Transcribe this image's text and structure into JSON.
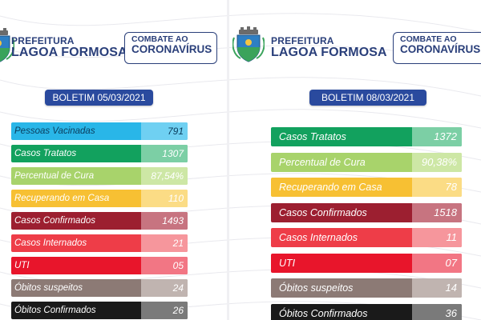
{
  "colors": {
    "brand_blue": "#2a3f7a",
    "boletim_blue": "#2a4a9e",
    "bg": "#ffffff"
  },
  "left": {
    "brand": {
      "line1": "PREFEITURA",
      "line2": "LAGOA FORMOSA"
    },
    "combat": {
      "line1": "COMBATE AO",
      "line2": "CORONAVÍRUS"
    },
    "crest_icon": "municipal-crest-icon",
    "boletim": "BOLETIM 05/03/2021",
    "rows": [
      {
        "label": "Pessoas Vacinadas",
        "value": "791",
        "color": "#29b6e8",
        "value_bg": "#6fd0f2",
        "text": "#0a3c5c"
      },
      {
        "label": "Casos Tratatos",
        "value": "1307",
        "color": "#12a15e",
        "value_bg": "#7ccfa5",
        "text": "#ffffff"
      },
      {
        "label": "Percentual de Cura",
        "value": "87,54%",
        "color": "#a8d36b",
        "value_bg": "#cde7a5",
        "text": "#ffffff"
      },
      {
        "label": "Recuperando em Casa",
        "value": "110",
        "color": "#f7c033",
        "value_bg": "#fbdc85",
        "text": "#ffffff"
      },
      {
        "label": "Casos Confirmados",
        "value": "1493",
        "color": "#9c1f30",
        "value_bg": "#c77480",
        "text": "#ffffff"
      },
      {
        "label": "Casos Internados",
        "value": "21",
        "color": "#ee3d48",
        "value_bg": "#f6969c",
        "text": "#ffffff"
      },
      {
        "label": "UTI",
        "value": "05",
        "color": "#e8152b",
        "value_bg": "#f27684",
        "text": "#ffffff"
      },
      {
        "label": "Óbitos suspeitos",
        "value": "24",
        "color": "#8c7a75",
        "value_bg": "#c0b4b0",
        "text": "#ffffff"
      },
      {
        "label": "Óbitos Confirmados",
        "value": "26",
        "color": "#1a1a1a",
        "value_bg": "#7a7a7a",
        "text": "#ffffff"
      }
    ]
  },
  "right": {
    "brand": {
      "line1": "PREFEITURA",
      "line2": "LAGOA FORMOSA"
    },
    "combat": {
      "line1": "COMBATE AO",
      "line2": "CORONAVÍRUS"
    },
    "crest_icon": "municipal-crest-icon",
    "boletim": "BOLETIM 08/03/2021",
    "rows": [
      {
        "label": "Casos Tratatos",
        "value": "1372",
        "color": "#12a15e",
        "value_bg": "#7ccfa5",
        "text": "#ffffff"
      },
      {
        "label": "Percentual de Cura",
        "value": "90,38%",
        "color": "#a8d36b",
        "value_bg": "#cde7a5",
        "text": "#ffffff"
      },
      {
        "label": "Recuperando em Casa",
        "value": "78",
        "color": "#f7c033",
        "value_bg": "#fbdc85",
        "text": "#ffffff"
      },
      {
        "label": "Casos Confirmados",
        "value": "1518",
        "color": "#9c1f30",
        "value_bg": "#c77480",
        "text": "#ffffff"
      },
      {
        "label": "Casos Internados",
        "value": "11",
        "color": "#ee3d48",
        "value_bg": "#f6969c",
        "text": "#ffffff"
      },
      {
        "label": "UTI",
        "value": "07",
        "color": "#e8152b",
        "value_bg": "#f27684",
        "text": "#ffffff"
      },
      {
        "label": "Óbitos suspeitos",
        "value": "14",
        "color": "#8c7a75",
        "value_bg": "#c0b4b0",
        "text": "#ffffff"
      },
      {
        "label": "Óbitos Confirmados",
        "value": "36",
        "color": "#1a1a1a",
        "value_bg": "#7a7a7a",
        "text": "#ffffff"
      }
    ]
  }
}
